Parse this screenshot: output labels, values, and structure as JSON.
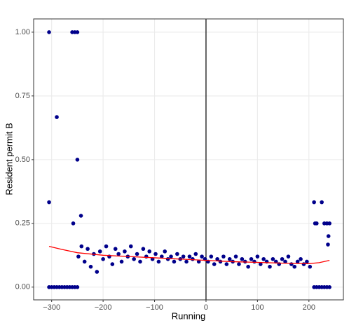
{
  "chart_data": {
    "type": "scatter",
    "x_label": "Running",
    "y_label": "Resident permit B",
    "xlim": [
      -335,
      267
    ],
    "ylim": [
      -0.05,
      1.052
    ],
    "xticks": [
      {
        "value": -300,
        "label": "−300"
      },
      {
        "value": -200,
        "label": "−200"
      },
      {
        "value": -100,
        "label": "−100"
      },
      0,
      100,
      200
    ],
    "yticks": [
      {
        "value": 0,
        "label": "0.00"
      },
      {
        "value": 0.25,
        "label": "0.25"
      },
      {
        "value": 0.5,
        "label": "0.50"
      },
      {
        "value": 0.75,
        "label": "0.75"
      },
      {
        "value": 1,
        "label": "1.00"
      }
    ],
    "grid": true,
    "vline": 0,
    "points": {
      "color": "#00008b",
      "x": [
        -305,
        -260,
        -255,
        -250,
        -290,
        -250,
        -305,
        -243,
        -258,
        210,
        225,
        212,
        215,
        230,
        235,
        240,
        238,
        237,
        -305,
        -300,
        -295,
        -290,
        -285,
        -280,
        -275,
        -270,
        -265,
        -260,
        -255,
        -250,
        210,
        215,
        220,
        225,
        230,
        235,
        240,
        -248,
        -242,
        -236,
        -230,
        -224,
        -218,
        -212,
        -206,
        -200,
        -194,
        -188,
        -182,
        -176,
        -170,
        -164,
        -158,
        -152,
        -146,
        -140,
        -134,
        -128,
        -122,
        -116,
        -110,
        -104,
        -98,
        -92,
        -86,
        -80,
        -74,
        -68,
        -62,
        -56,
        -50,
        -44,
        -38,
        -32,
        -26,
        -20,
        -14,
        -8,
        -2,
        4,
        10,
        16,
        22,
        28,
        34,
        40,
        46,
        52,
        58,
        64,
        70,
        76,
        82,
        88,
        94,
        100,
        106,
        112,
        118,
        124,
        130,
        136,
        142,
        148,
        154,
        160,
        166,
        172,
        178,
        184,
        190,
        196,
        202
      ],
      "y": [
        1,
        1,
        1,
        1,
        0.667,
        0.5,
        0.333,
        0.28,
        0.25,
        0.333,
        0.333,
        0.25,
        0.25,
        0.25,
        0.25,
        0.25,
        0.2,
        0.167,
        0,
        0,
        0,
        0,
        0,
        0,
        0,
        0,
        0,
        0,
        0,
        0,
        0,
        0,
        0,
        0,
        0,
        0,
        0,
        0.12,
        0.16,
        0.1,
        0.15,
        0.08,
        0.13,
        0.06,
        0.14,
        0.11,
        0.16,
        0.12,
        0.09,
        0.15,
        0.13,
        0.1,
        0.14,
        0.12,
        0.16,
        0.11,
        0.13,
        0.1,
        0.15,
        0.12,
        0.14,
        0.11,
        0.13,
        0.1,
        0.12,
        0.14,
        0.11,
        0.12,
        0.1,
        0.13,
        0.11,
        0.12,
        0.1,
        0.12,
        0.11,
        0.13,
        0.1,
        0.12,
        0.11,
        0.1,
        0.12,
        0.09,
        0.11,
        0.1,
        0.12,
        0.09,
        0.11,
        0.1,
        0.12,
        0.09,
        0.11,
        0.1,
        0.08,
        0.11,
        0.1,
        0.12,
        0.09,
        0.11,
        0.1,
        0.08,
        0.11,
        0.1,
        0.09,
        0.11,
        0.1,
        0.12,
        0.09,
        0.08,
        0.1,
        0.11,
        0.09,
        0.1,
        0.08
      ]
    },
    "fit": {
      "color": "#ff0000",
      "x": [
        -305,
        -280,
        -250,
        -200,
        -150,
        -100,
        -50,
        0,
        50,
        100,
        150,
        200,
        220,
        240
      ],
      "y": [
        0.16,
        0.148,
        0.135,
        0.125,
        0.12,
        0.115,
        0.11,
        0.105,
        0.1,
        0.097,
        0.094,
        0.092,
        0.096,
        0.105
      ]
    }
  }
}
